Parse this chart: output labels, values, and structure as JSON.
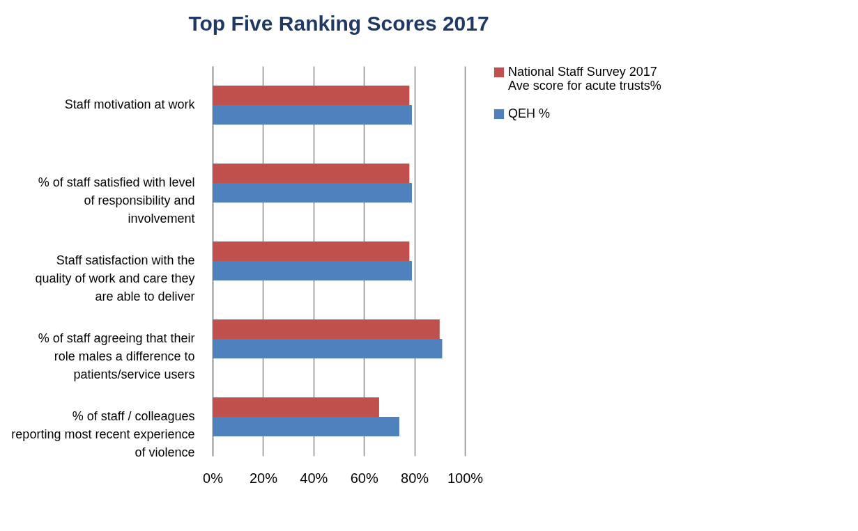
{
  "chart_data": {
    "type": "bar",
    "orientation": "horizontal",
    "title": "Top Five Ranking Scores 2017",
    "categories": [
      "Staff motivation at work",
      "% of staff satisfied with level of responsibility and involvement",
      "Staff satisfaction with the quality of work and care they are able to deliver",
      "% of staff agreeing that their role males a difference  to patients/service users",
      "% of staff / colleagues reporting most recent experience of violence"
    ],
    "series": [
      {
        "name": "National Staff Survey 2017 Ave score for acute trusts%",
        "color": "#c0504d",
        "values": [
          78,
          78,
          78,
          90,
          66
        ]
      },
      {
        "name": "QEH %",
        "color": "#4f81bd",
        "values": [
          79,
          79,
          79,
          91,
          74
        ]
      }
    ],
    "xlim": [
      0,
      100
    ],
    "xticks": [
      {
        "value": 0,
        "label": "0%"
      },
      {
        "value": 20,
        "label": "20%"
      },
      {
        "value": 40,
        "label": "40%"
      },
      {
        "value": 60,
        "label": "60%"
      },
      {
        "value": 80,
        "label": "80%"
      },
      {
        "value": 100,
        "label": "100%"
      }
    ],
    "grid": "x",
    "legend": "right"
  }
}
